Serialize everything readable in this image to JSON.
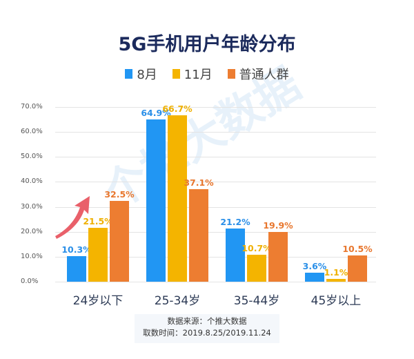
{
  "title": "5G手机用户年龄分布",
  "legend": [
    {
      "label": "8月",
      "color": "#2196f3"
    },
    {
      "label": "11月",
      "color": "#f4b400"
    },
    {
      "label": "普通人群",
      "color": "#ed7d31"
    }
  ],
  "watermark": "个推大数据",
  "source": {
    "line1": "数据来源：个推大数据",
    "line2": "取数时间：2019.8.25/2019.11.24"
  },
  "chart_data": {
    "type": "bar",
    "title": "5G手机用户年龄分布",
    "xlabel": "",
    "ylabel": "",
    "ylim": [
      0,
      70
    ],
    "yticks": [
      "0.0%",
      "10.0%",
      "20.0%",
      "30.0%",
      "40.0%",
      "50.0%",
      "60.0%",
      "70.0%"
    ],
    "grid": true,
    "legend_position": "top",
    "categories": [
      "24岁以下",
      "25-34岁",
      "35-44岁",
      "45岁以上"
    ],
    "series": [
      {
        "name": "8月",
        "color": "#2196f3",
        "values": [
          10.3,
          64.9,
          21.2,
          3.6
        ],
        "labels": [
          "10.3%",
          "64.9%",
          "21.2%",
          "3.6%"
        ]
      },
      {
        "name": "11月",
        "color": "#f4b400",
        "values": [
          21.5,
          66.7,
          10.7,
          1.1
        ],
        "labels": [
          "21.5%",
          "66.7%",
          "10.7%",
          "1.1%"
        ]
      },
      {
        "name": "普通人群",
        "color": "#ed7d31",
        "values": [
          32.5,
          37.1,
          19.9,
          10.5
        ],
        "labels": [
          "32.5%",
          "37.1%",
          "19.9%",
          "10.5%"
        ]
      }
    ],
    "annotations": [
      "red upward arrow over 24岁以下 group"
    ]
  }
}
